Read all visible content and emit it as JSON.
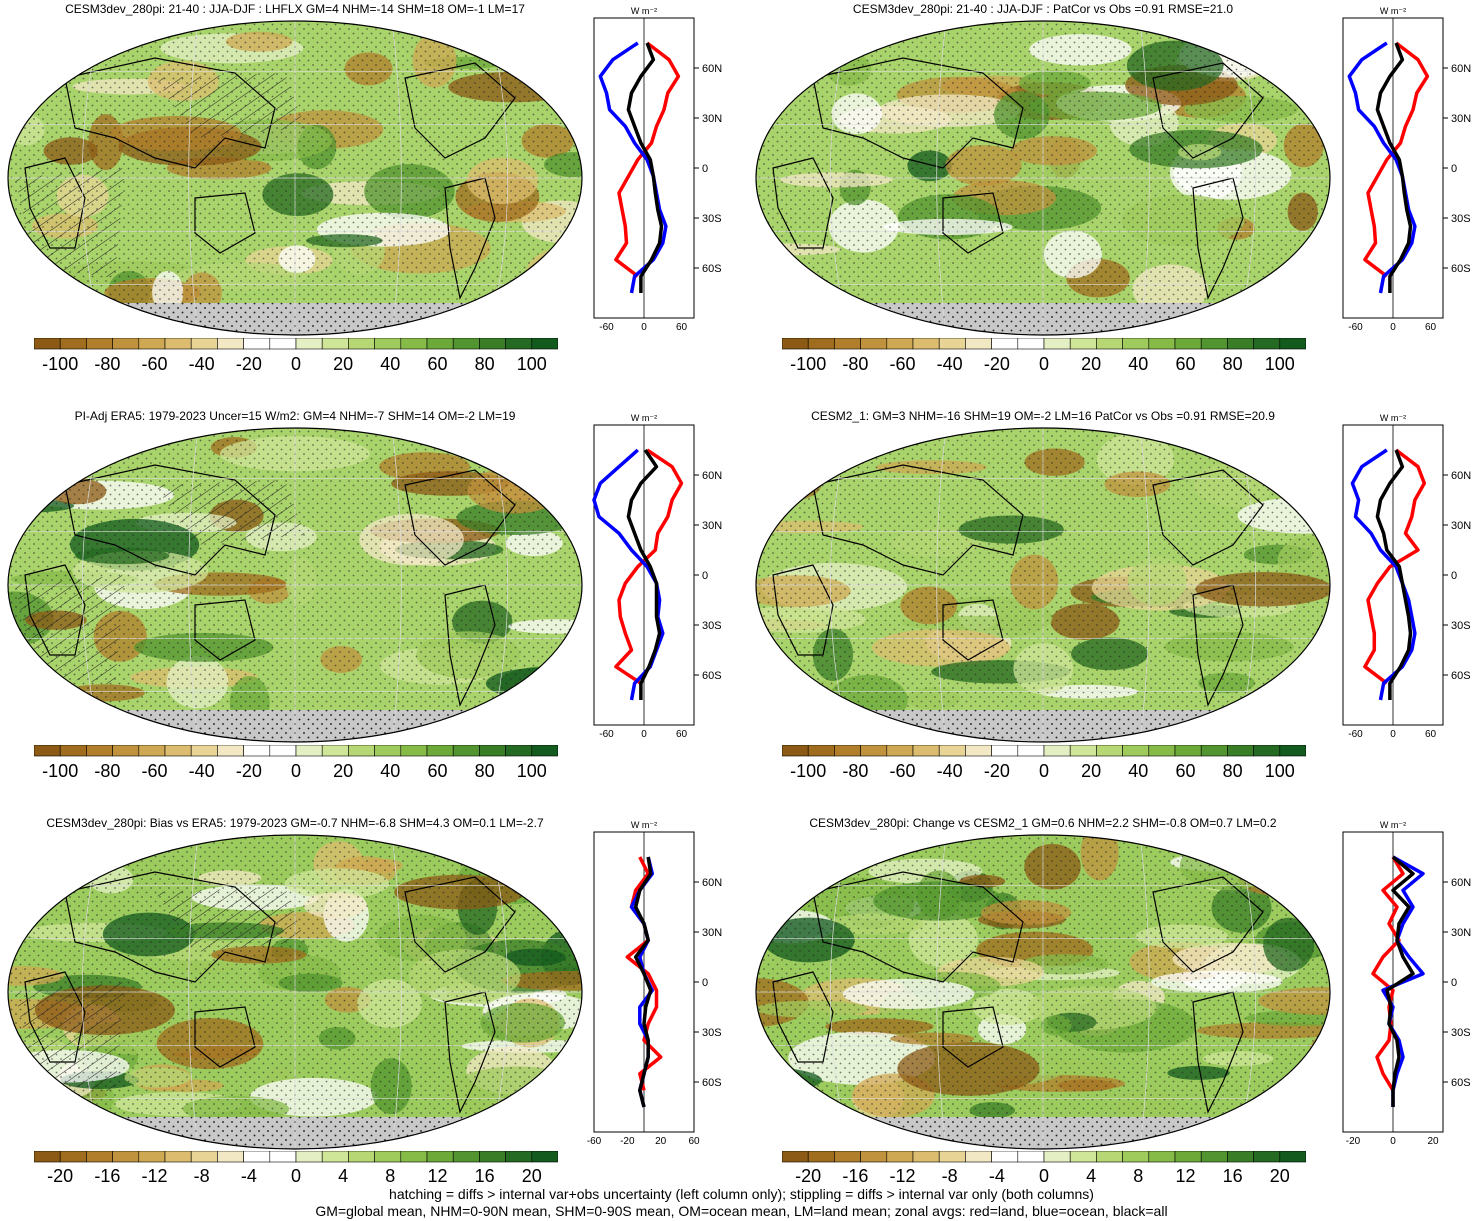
{
  "palette": [
    "#8c5a15",
    "#a06c1e",
    "#b17f2c",
    "#c0923d",
    "#cfa853",
    "#dcbd6f",
    "#e8d596",
    "#f3e8c4",
    "#ffffff",
    "#ffffff",
    "#e4f0c4",
    "#cfe598",
    "#b6d774",
    "#9fca5c",
    "#86bb48",
    "#6ca939",
    "#52942f",
    "#3a7d27",
    "#256a22",
    "#125a1d"
  ],
  "line_colors": {
    "land": "#ff0000",
    "ocean": "#0000ff",
    "all": "#000000"
  },
  "panels": [
    {
      "title": "CESM3dev_280pi: 21-40 : JJA-DJF : LHFLX GM=4 NHM=-14 SHM=18 OM=-1 LM=17",
      "colorbar_labels": [
        "-100",
        "-80",
        "-60",
        "-40",
        "-20",
        "0",
        "20",
        "40",
        "60",
        "80",
        "100"
      ],
      "zonal_units": "W m⁻²",
      "zonal_xticks": [
        "-60",
        "0",
        "60"
      ],
      "zonal_xrange": [
        -80,
        80
      ],
      "zonal_yticks": [
        "60N",
        "30N",
        "0",
        "30S",
        "60S"
      ],
      "hatched": true
    },
    {
      "title": "CESM3dev_280pi: 21-40 : JJA-DJF : PatCor vs Obs =0.91 RMSE=21.0",
      "colorbar_labels": [
        "-100",
        "-80",
        "-60",
        "-40",
        "-20",
        "0",
        "20",
        "40",
        "60",
        "80",
        "100"
      ],
      "zonal_units": "W m⁻²",
      "zonal_xticks": [
        "-60",
        "0",
        "60"
      ],
      "zonal_xrange": [
        -80,
        80
      ],
      "zonal_yticks": [
        "60N",
        "30N",
        "0",
        "30S",
        "60S"
      ],
      "hatched": false
    },
    {
      "title": "PI-Adj ERA5: 1979-2023 Uncer=15 W/m2: GM=4 NHM=-7 SHM=14 OM=-2 LM=19",
      "colorbar_labels": [
        "-100",
        "-80",
        "-60",
        "-40",
        "-20",
        "0",
        "20",
        "40",
        "60",
        "80",
        "100"
      ],
      "zonal_units": "W m⁻²",
      "zonal_xticks": [
        "-60",
        "0",
        "60"
      ],
      "zonal_xrange": [
        -80,
        80
      ],
      "zonal_yticks": [
        "60N",
        "30N",
        "0",
        "30S",
        "60S"
      ],
      "hatched": true
    },
    {
      "title": "CESM2_1: GM=3 NHM=-16 SHM=19 OM=-2 LM=16 PatCor vs Obs =0.91 RMSE=20.9",
      "colorbar_labels": [
        "-100",
        "-80",
        "-60",
        "-40",
        "-20",
        "0",
        "20",
        "40",
        "60",
        "80",
        "100"
      ],
      "zonal_units": "W m⁻²",
      "zonal_xticks": [
        "-60",
        "0",
        "60"
      ],
      "zonal_xrange": [
        -80,
        80
      ],
      "zonal_yticks": [
        "60N",
        "30N",
        "0",
        "30S",
        "60S"
      ],
      "hatched": false
    },
    {
      "title": "CESM3dev_280pi: Bias vs ERA5: 1979-2023 GM=-0.7 NHM=-6.8 SHM=4.3 OM=0.1 LM=-2.7",
      "colorbar_labels": [
        "-20",
        "-16",
        "-12",
        "-8",
        "-4",
        "0",
        "4",
        "8",
        "12",
        "16",
        "20"
      ],
      "zonal_units": "W m⁻²",
      "zonal_xticks": [
        "-60",
        "-20",
        "20",
        "60"
      ],
      "zonal_xrange": [
        -60,
        60
      ],
      "zonal_yticks": [
        "60N",
        "30N",
        "0",
        "30S",
        "60S"
      ],
      "hatched": true
    },
    {
      "title": "CESM3dev_280pi: Change vs CESM2_1 GM=0.6 NHM=2.2 SHM=-0.8 OM=0.7 LM=0.2",
      "colorbar_labels": [
        "-20",
        "-16",
        "-12",
        "-8",
        "-4",
        "0",
        "4",
        "8",
        "12",
        "16",
        "20"
      ],
      "zonal_units": "W m⁻²",
      "zonal_xticks": [
        "-20",
        "0",
        "20"
      ],
      "zonal_xrange": [
        -25,
        25
      ],
      "zonal_yticks": [
        "60N",
        "30N",
        "0",
        "30S",
        "60S"
      ],
      "hatched": false
    }
  ],
  "footer": {
    "line1": "hatching = diffs > internal var+obs uncertainty (left column only); stippling = diffs > internal var only (both columns)",
    "line2": "GM=global mean, NHM=0-90N mean, SHM=0-90S mean, OM=ocean mean, LM=land mean; zonal avgs: red=land, blue=ocean, black=all"
  },
  "chart_data": [
    {
      "type": "line",
      "title": "CESM3dev_280pi: 21-40 : JJA-DJF : LHFLX GM=4 NHM=-14 SHM=18 OM=-1 LM=17",
      "xlabel": "W m⁻²",
      "xlim": [
        -80,
        80
      ],
      "y": [
        75,
        65,
        55,
        45,
        35,
        25,
        15,
        5,
        -5,
        -15,
        -25,
        -35,
        -45,
        -55,
        -65,
        -75
      ],
      "series": [
        {
          "name": "land",
          "values": [
            5,
            40,
            55,
            38,
            32,
            20,
            12,
            -10,
            -25,
            -40,
            -35,
            -30,
            -28,
            -45,
            -10,
            null
          ]
        },
        {
          "name": "ocean",
          "values": [
            -10,
            -50,
            -70,
            -60,
            -55,
            -30,
            -15,
            5,
            15,
            20,
            25,
            35,
            30,
            15,
            -15,
            -20
          ]
        },
        {
          "name": "all",
          "values": [
            5,
            15,
            -5,
            -20,
            -25,
            -15,
            -5,
            10,
            15,
            18,
            22,
            28,
            25,
            12,
            -5,
            -5
          ]
        }
      ]
    },
    {
      "type": "line",
      "title": "CESM3dev_280pi: 21-40 : JJA-DJF : PatCor vs Obs =0.91 RMSE=21.0",
      "xlabel": "W m⁻²",
      "xlim": [
        -80,
        80
      ],
      "y": [
        75,
        65,
        55,
        45,
        35,
        25,
        15,
        5,
        -5,
        -15,
        -25,
        -35,
        -45,
        -55,
        -65,
        -75
      ],
      "series": [
        {
          "name": "land",
          "values": [
            5,
            40,
            55,
            38,
            32,
            20,
            12,
            -10,
            -25,
            -40,
            -35,
            -30,
            -28,
            -45,
            -10,
            null
          ]
        },
        {
          "name": "ocean",
          "values": [
            -10,
            -50,
            -70,
            -60,
            -55,
            -30,
            -15,
            5,
            15,
            20,
            25,
            35,
            30,
            15,
            -15,
            -20
          ]
        },
        {
          "name": "all",
          "values": [
            5,
            15,
            -5,
            -20,
            -25,
            -15,
            -5,
            10,
            15,
            18,
            22,
            28,
            25,
            12,
            -5,
            -5
          ]
        }
      ]
    },
    {
      "type": "line",
      "title": "PI-Adj ERA5: 1979-2023 Uncer=15 W/m2: GM=4 NHM=-7 SHM=14 OM=-2 LM=19",
      "xlabel": "W m⁻²",
      "xlim": [
        -80,
        80
      ],
      "y": [
        75,
        65,
        55,
        45,
        35,
        25,
        15,
        5,
        -5,
        -15,
        -25,
        -35,
        -45,
        -55,
        -65,
        -75
      ],
      "series": [
        {
          "name": "land",
          "values": [
            5,
            45,
            60,
            45,
            38,
            22,
            18,
            -10,
            -30,
            -40,
            -38,
            -30,
            -20,
            -45,
            -5,
            null
          ]
        },
        {
          "name": "ocean",
          "values": [
            -10,
            -40,
            -70,
            -80,
            -72,
            -40,
            -20,
            5,
            20,
            25,
            22,
            30,
            20,
            10,
            -15,
            -20
          ]
        },
        {
          "name": "all",
          "values": [
            2,
            20,
            -5,
            -20,
            -25,
            -15,
            -5,
            10,
            20,
            20,
            20,
            25,
            18,
            8,
            -5,
            -5
          ]
        }
      ]
    },
    {
      "type": "line",
      "title": "CESM2_1: GM=3 NHM=-16 SHM=19 OM=-2 LM=16 PatCor vs Obs =0.91 RMSE=20.9",
      "xlabel": "W m⁻²",
      "xlim": [
        -80,
        80
      ],
      "y": [
        75,
        65,
        55,
        45,
        35,
        25,
        15,
        5,
        -5,
        -15,
        -25,
        -35,
        -45,
        -55,
        -65,
        -75
      ],
      "series": [
        {
          "name": "land",
          "values": [
            5,
            40,
            50,
            35,
            30,
            20,
            40,
            -5,
            -25,
            -40,
            -35,
            -30,
            -30,
            -45,
            -10,
            null
          ]
        },
        {
          "name": "ocean",
          "values": [
            -10,
            -50,
            -65,
            -55,
            -60,
            -35,
            -20,
            5,
            15,
            25,
            30,
            35,
            30,
            15,
            -15,
            -20
          ]
        },
        {
          "name": "all",
          "values": [
            5,
            15,
            -5,
            -20,
            -25,
            -15,
            -10,
            10,
            15,
            20,
            25,
            28,
            25,
            12,
            -5,
            -5
          ]
        }
      ]
    },
    {
      "type": "line",
      "title": "CESM3dev_280pi: Bias vs ERA5: 1979-2023 GM=-0.7 NHM=-6.8 SHM=4.3 OM=0.1 LM=-2.7",
      "xlabel": "W m⁻²",
      "xlim": [
        -60,
        60
      ],
      "y": [
        75,
        65,
        55,
        45,
        35,
        25,
        15,
        5,
        -5,
        -15,
        -25,
        -35,
        -45,
        -55,
        -65,
        -75
      ],
      "series": [
        {
          "name": "land",
          "values": [
            -5,
            5,
            -10,
            -15,
            0,
            5,
            -20,
            5,
            15,
            15,
            5,
            0,
            20,
            -5,
            0,
            null
          ]
        },
        {
          "name": "ocean",
          "values": [
            5,
            10,
            -5,
            -15,
            0,
            5,
            -5,
            0,
            10,
            -5,
            -5,
            5,
            5,
            0,
            -5,
            0
          ]
        },
        {
          "name": "all",
          "values": [
            5,
            8,
            -5,
            -10,
            0,
            5,
            -10,
            0,
            8,
            2,
            0,
            5,
            5,
            0,
            -5,
            0
          ]
        }
      ]
    },
    {
      "type": "line",
      "title": "CESM3dev_280pi: Change vs CESM2_1 GM=0.6 NHM=2.2 SHM=-0.8 OM=0.7 LM=0.2",
      "xlabel": "W m⁻²",
      "xlim": [
        -25,
        25
      ],
      "y": [
        75,
        65,
        55,
        45,
        35,
        25,
        15,
        5,
        -5,
        -15,
        -25,
        -35,
        -45,
        -55,
        -65,
        -75
      ],
      "series": [
        {
          "name": "land",
          "values": [
            0,
            5,
            -5,
            2,
            -2,
            3,
            -5,
            -10,
            0,
            -2,
            -1,
            -2,
            -8,
            -5,
            0,
            null
          ]
        },
        {
          "name": "ocean",
          "values": [
            0,
            15,
            5,
            10,
            5,
            2,
            8,
            15,
            -5,
            0,
            -2,
            3,
            5,
            2,
            0,
            0
          ]
        },
        {
          "name": "all",
          "values": [
            0,
            10,
            0,
            8,
            3,
            2,
            5,
            10,
            -3,
            -1,
            -2,
            2,
            3,
            1,
            0,
            0
          ]
        }
      ]
    }
  ]
}
